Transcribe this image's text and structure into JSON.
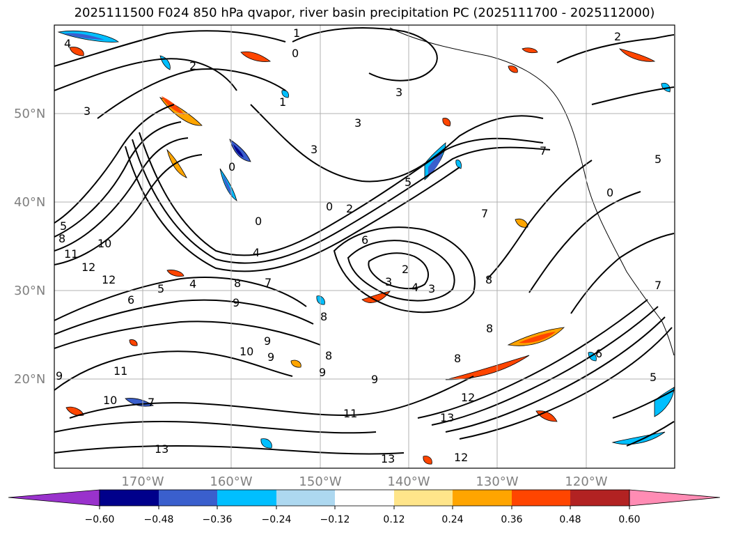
{
  "title": "2025111500 F024 850 hPa qvapor, river basin precipitation PC (2025111700 - 2025112000)",
  "map": {
    "lat_labels": [
      "50°N",
      "40°N",
      "30°N",
      "20°N"
    ],
    "lon_labels": [
      "170°W",
      "160°W",
      "150°W",
      "140°W",
      "130°W",
      "120°W"
    ],
    "contour_labels": [
      "4",
      "1",
      "0",
      "2",
      "3",
      "1",
      "3",
      "3",
      "0",
      "0",
      "2",
      "0",
      "5",
      "7",
      "7",
      "5",
      "6",
      "0",
      "4",
      "5",
      "8",
      "10",
      "11",
      "12",
      "12",
      "5",
      "4",
      "6",
      "7",
      "2",
      "3",
      "3",
      "4",
      "7",
      "8",
      "8",
      "9",
      "9",
      "9",
      "8",
      "8",
      "9",
      "9",
      "8",
      "10",
      "9",
      "11",
      "11",
      "12",
      "13",
      "13",
      "12",
      "13",
      "6",
      "5",
      "3",
      "8",
      "10",
      "7",
      "2"
    ]
  },
  "colorbar": {
    "ticks": [
      "−0.60",
      "−0.48",
      "−0.36",
      "−0.24",
      "−0.12",
      "0.12",
      "0.24",
      "0.36",
      "0.48",
      "0.60"
    ],
    "colors": [
      "#9932cc",
      "#00008b",
      "#3a5fcd",
      "#00bfff",
      "#add8f0",
      "#ffffff",
      "#ffe58a",
      "#ffa500",
      "#ff4500",
      "#b22222",
      "#ff8cb4"
    ]
  }
}
